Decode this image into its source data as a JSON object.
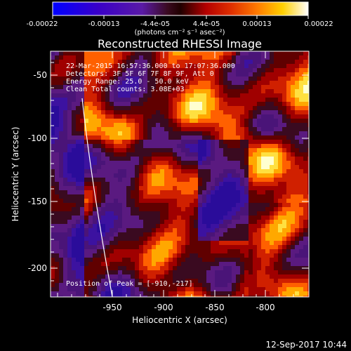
{
  "colorbar": {
    "tick_labels": [
      "-0.00022",
      "-0.00013",
      "-4.4e-05",
      "4.4e-05",
      "0.00013",
      "0.00022"
    ],
    "unit_label": "(photons cm⁻² s⁻¹ asec⁻²)",
    "colors": [
      "#0000ff",
      "#3a00c8",
      "#5a1aa6",
      "#8a2a6e",
      "#b40000",
      "#e03000",
      "#ff7a00",
      "#ffd000",
      "#ffffff"
    ]
  },
  "title": "Reconstructed RHESSI Image",
  "overlay": {
    "time_range": "22-Mar-2015 16:57:36.000 to 17:07:36.000",
    "detectors": "Detectors: 3F 5F 6F 7F 8F 9F, Att 0",
    "energy_range": "Energy Range: 25.0 - 50.0 keV",
    "method": "Clean     Total counts: 3.08E+03",
    "peak": "Position of Peak = [-910,-217]"
  },
  "axes": {
    "x_label": "Heliocentric X (arcsec)",
    "y_label": "Heliocentric Y (arcsec)",
    "x_ticks": [
      "-950",
      "-900",
      "-850",
      "-800"
    ],
    "y_ticks": [
      "-50",
      "-100",
      "-150",
      "-200"
    ]
  },
  "footer_timestamp": "12-Sep-2017 10:44"
}
